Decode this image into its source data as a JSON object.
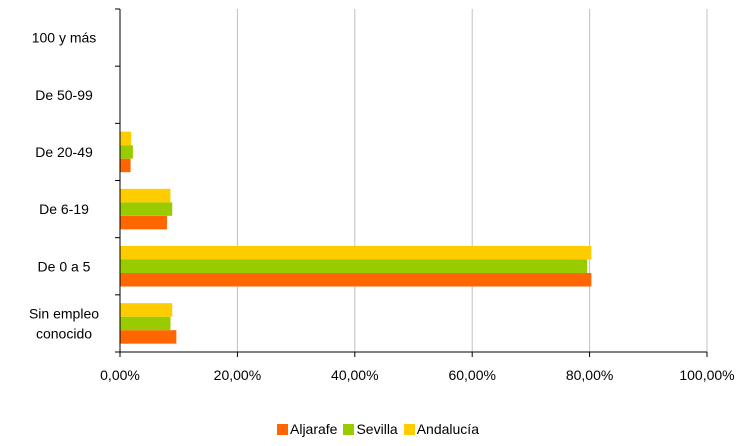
{
  "chart_data": {
    "type": "bar",
    "orientation": "horizontal",
    "categories": [
      "100 y más",
      "De 50-99",
      "De 20-49",
      "De 6-19",
      "De 0 a 5",
      "Sin empleo conocido"
    ],
    "category_lines": [
      [
        "100 y más"
      ],
      [
        "De 50-99"
      ],
      [
        "De 20-49"
      ],
      [
        "De 6-19"
      ],
      [
        "De 0 a 5"
      ],
      [
        "Sin empleo",
        "conocido"
      ]
    ],
    "series": [
      {
        "name": "Aljarafe",
        "color": "#ff6600",
        "values": [
          0,
          0,
          1.8,
          8.0,
          80.3,
          9.6
        ]
      },
      {
        "name": "Sevilla",
        "color": "#99cc00",
        "values": [
          0,
          0,
          2.2,
          8.9,
          79.6,
          8.6
        ]
      },
      {
        "name": "Andalucía",
        "color": "#ffcc00",
        "values": [
          0,
          0,
          1.9,
          8.6,
          80.3,
          8.9
        ]
      }
    ],
    "xlim": [
      0,
      100
    ],
    "x_ticks": [
      "0,00%",
      "20,00%",
      "40,00%",
      "60,00%",
      "80,00%",
      "100,00%"
    ],
    "grid": true,
    "legend_position": "bottom"
  }
}
